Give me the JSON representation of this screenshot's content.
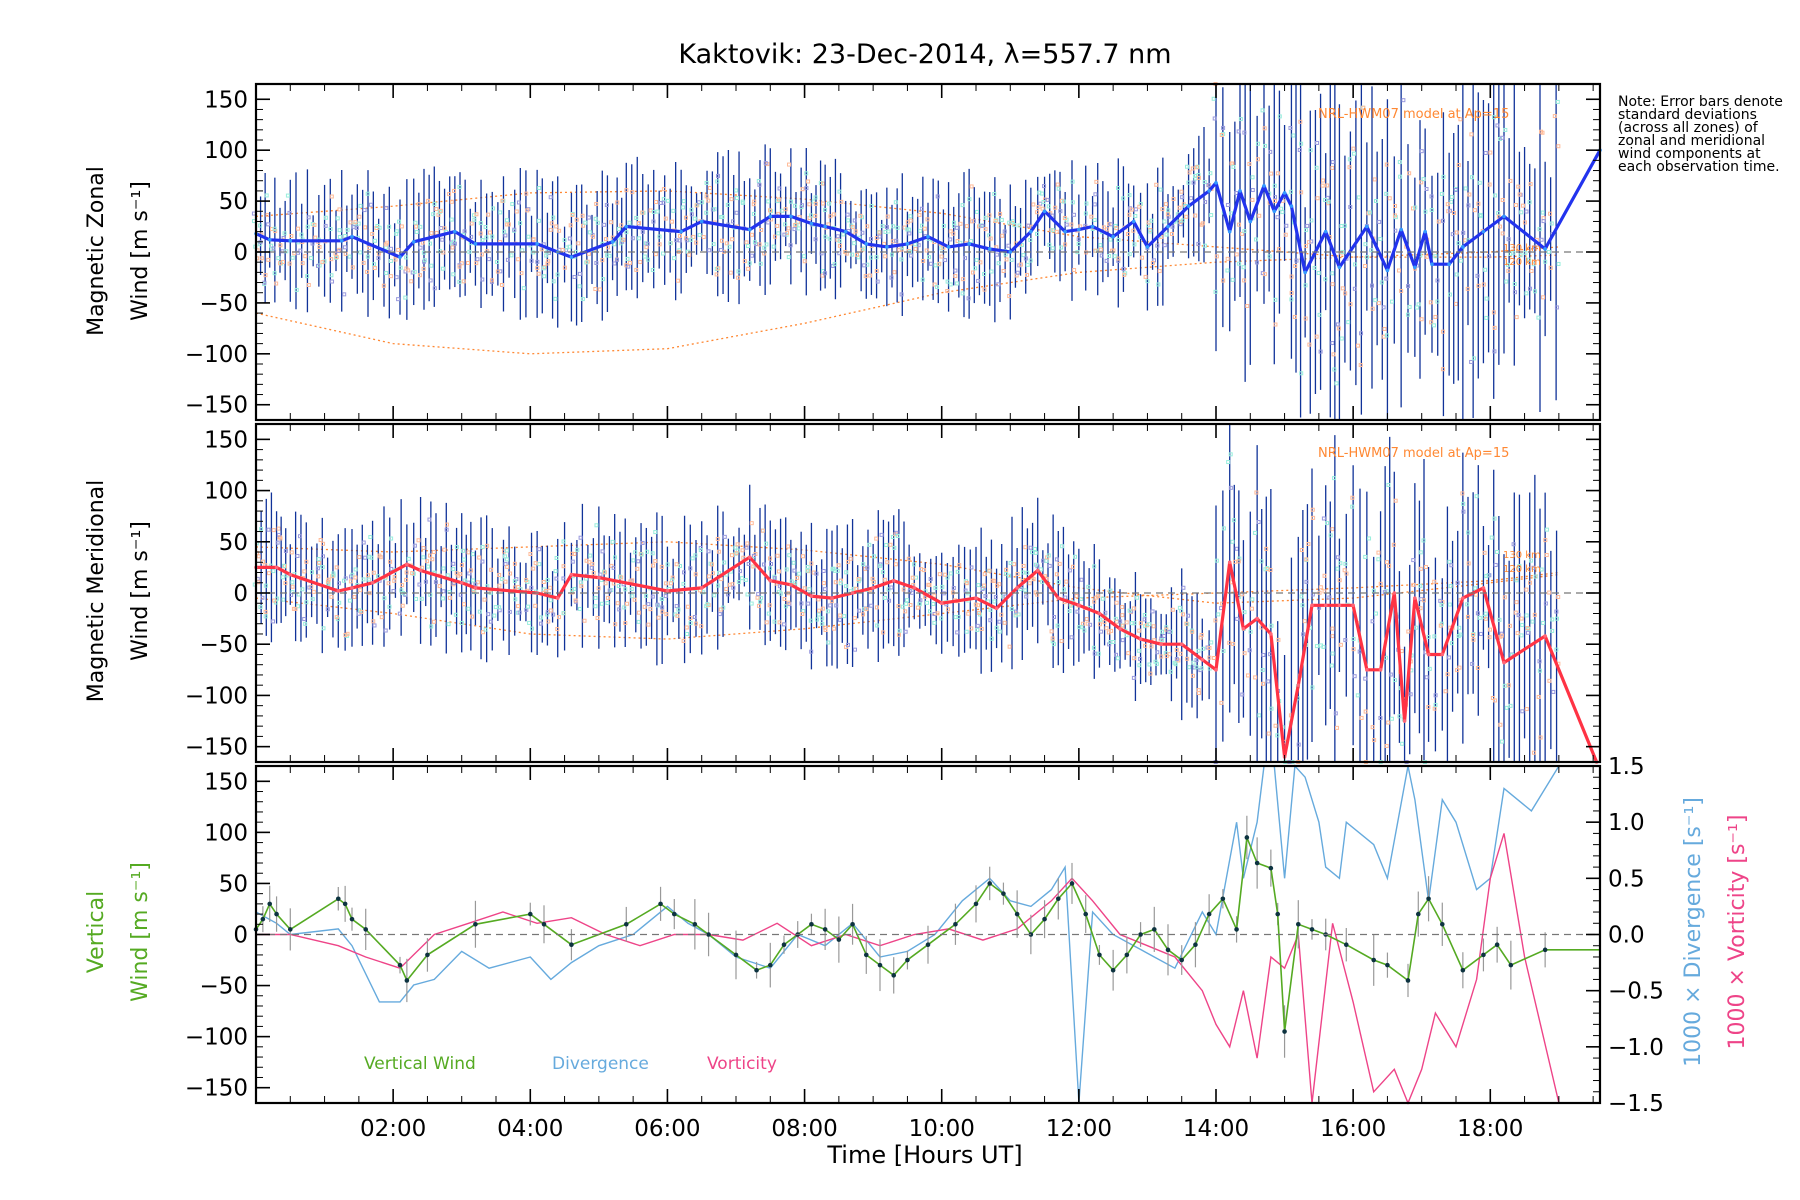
{
  "figure": {
    "title": "Kaktovik: 23-Dec-2014, λ=557.7 nm",
    "note": "Note: Error bars denote standard deviations (across all zones) of zonal and meridional wind components at each observation time.",
    "x_axis": {
      "label": "Time [Hours UT]",
      "range": [
        0.0,
        19.6
      ],
      "ticks": [
        2,
        4,
        6,
        8,
        10,
        12,
        14,
        16,
        18
      ],
      "tick_labels": [
        "02:00",
        "04:00",
        "06:00",
        "08:00",
        "10:00",
        "12:00",
        "14:00",
        "16:00",
        "18:00"
      ]
    },
    "colors": {
      "zonal": "#2233ee",
      "meridional": "#ff3344",
      "vertical": "#55aa22",
      "divergence": "#66aadd",
      "vorticity": "#ee4488",
      "model": "#ff8833",
      "error_bar": "#113399",
      "zone_point": "#9999dd",
      "zone_cyan": "#99eedd",
      "zone_orange": "#ffbb99"
    }
  },
  "chart_data": [
    {
      "type": "line",
      "id": "zonal",
      "ylabel_line1": "Magnetic Zonal",
      "ylabel_line2": "Wind [m s⁻¹]",
      "ylim": [
        -165,
        165
      ],
      "yticks": [
        150,
        100,
        50,
        0,
        -50,
        -100,
        -150
      ],
      "model_label": "NRL-HWM07 model at Ap=15",
      "model_height_labels": [
        "130 km",
        "120 km"
      ],
      "series": [
        {
          "name": "Zonal wind",
          "x": [
            0.0,
            0.2,
            0.5,
            1.25,
            1.4,
            2.1,
            2.3,
            2.9,
            3.2,
            4.1,
            4.4,
            4.6,
            5.2,
            5.4,
            6.2,
            6.5,
            7.2,
            7.5,
            7.8,
            8.1,
            8.3,
            8.6,
            8.9,
            9.2,
            9.5,
            9.8,
            10.1,
            10.4,
            10.7,
            11.0,
            11.3,
            11.5,
            11.8,
            12.0,
            12.2,
            12.5,
            12.8,
            13.0,
            13.3,
            13.6,
            13.9,
            14.0,
            14.2,
            14.35,
            14.5,
            14.7,
            14.85,
            15.0,
            15.1,
            15.3,
            15.6,
            15.8,
            16.2,
            16.5,
            16.7,
            16.9,
            17.05,
            17.15,
            17.4,
            17.6,
            17.9,
            18.2,
            18.8,
            19.6
          ],
          "values": [
            18,
            12,
            11,
            11,
            15,
            -5,
            10,
            20,
            8,
            8,
            0,
            -5,
            10,
            25,
            20,
            30,
            22,
            35,
            35,
            28,
            25,
            20,
            8,
            5,
            8,
            15,
            5,
            8,
            3,
            0,
            20,
            40,
            20,
            22,
            25,
            15,
            30,
            5,
            25,
            45,
            60,
            68,
            20,
            60,
            30,
            65,
            40,
            58,
            45,
            -20,
            20,
            -15,
            25,
            -18,
            22,
            -15,
            20,
            -12,
            -12,
            5,
            20,
            35,
            3,
            100
          ]
        },
        {
          "name": "NRL-HWM07 model 130 km",
          "x": [
            0.0,
            2.0,
            4.0,
            6.0,
            8.0,
            10.0,
            12.0,
            14.0,
            16.0,
            18.0,
            19.0
          ],
          "values": [
            35,
            45,
            58,
            60,
            52,
            38,
            15,
            5,
            -5,
            0,
            5
          ]
        },
        {
          "name": "NRL-HWM07 model 120 km",
          "x": [
            0.0,
            2.0,
            4.0,
            6.0,
            8.0,
            10.0,
            12.0,
            14.0,
            16.0,
            18.0,
            19.0
          ],
          "values": [
            -60,
            -90,
            -100,
            -95,
            -70,
            -40,
            -20,
            -10,
            -5,
            -5,
            -3
          ]
        }
      ]
    },
    {
      "type": "line",
      "id": "meridional",
      "ylabel_line1": "Magnetic Meridional",
      "ylabel_line2": "Wind [m s⁻¹]",
      "ylim": [
        -165,
        165
      ],
      "yticks": [
        150,
        100,
        50,
        0,
        -50,
        -100,
        -150
      ],
      "model_label": "NRL-HWM07 model at Ap=15",
      "model_height_labels": [
        "130 km",
        "120 km"
      ],
      "series": [
        {
          "name": "Meridional wind",
          "x": [
            0.0,
            0.3,
            0.5,
            1.2,
            1.4,
            1.7,
            2.2,
            2.4,
            3.0,
            3.2,
            4.1,
            4.4,
            4.6,
            5.0,
            6.0,
            6.5,
            7.2,
            7.5,
            7.8,
            8.1,
            8.4,
            8.7,
            9.0,
            9.3,
            9.6,
            10.0,
            10.5,
            10.8,
            11.1,
            11.4,
            11.7,
            12.0,
            12.3,
            12.6,
            12.9,
            13.2,
            13.5,
            13.8,
            14.0,
            14.2,
            14.4,
            14.6,
            14.8,
            15.0,
            15.2,
            15.4,
            15.6,
            15.8,
            16.0,
            16.2,
            16.4,
            16.6,
            16.75,
            16.9,
            17.1,
            17.3,
            17.6,
            17.9,
            18.2,
            18.8,
            19.55
          ],
          "values": [
            25,
            25,
            18,
            2,
            5,
            10,
            28,
            22,
            10,
            5,
            0,
            -5,
            18,
            15,
            2,
            5,
            35,
            12,
            8,
            -3,
            -5,
            0,
            5,
            12,
            5,
            -10,
            -5,
            -15,
            5,
            22,
            -5,
            -12,
            -20,
            -35,
            -45,
            -50,
            -50,
            -65,
            -75,
            30,
            -35,
            -25,
            -40,
            -160,
            -90,
            -12,
            -12,
            -12,
            -12,
            -75,
            -75,
            0,
            -125,
            -5,
            -60,
            -60,
            -5,
            5,
            -68,
            -42,
            -165
          ]
        },
        {
          "name": "NRL-HWM07 model 130 km",
          "x": [
            0.0,
            2.0,
            4.0,
            6.0,
            8.0,
            10.0,
            12.0,
            14.0,
            16.0,
            18.0,
            19.0
          ],
          "values": [
            45,
            40,
            45,
            50,
            42,
            28,
            5,
            -10,
            -5,
            10,
            18
          ]
        },
        {
          "name": "NRL-HWM07 model 120 km",
          "x": [
            0.0,
            2.0,
            4.0,
            6.0,
            8.0,
            10.0,
            12.0,
            14.0,
            16.0,
            18.0,
            19.0
          ],
          "values": [
            -5,
            -20,
            -40,
            -45,
            -35,
            -20,
            -5,
            0,
            5,
            12,
            20
          ]
        }
      ]
    },
    {
      "type": "line",
      "id": "vertical",
      "ylabel_line1": "Vertical",
      "ylabel_line2": "Wind [m s⁻¹]",
      "ylim": [
        -165,
        165
      ],
      "yticks": [
        150,
        100,
        50,
        0,
        -50,
        -100,
        -150
      ],
      "y2label_div": "1000 × Divergence [s⁻¹]",
      "y2label_vort": "1000 × Vorticity [s⁻¹]",
      "y2lim": [
        -1.5,
        1.5
      ],
      "y2ticks": [
        1.5,
        1.0,
        0.5,
        0.0,
        -0.5,
        -1.0,
        -1.5
      ],
      "legend": [
        "Vertical Wind",
        "Divergence",
        "Vorticity"
      ],
      "series": [
        {
          "name": "Vertical Wind",
          "x": [
            0.0,
            0.1,
            0.2,
            0.3,
            0.5,
            1.2,
            1.3,
            1.4,
            1.6,
            2.1,
            2.2,
            2.5,
            3.2,
            4.0,
            4.2,
            4.6,
            5.4,
            5.9,
            6.1,
            6.4,
            6.6,
            7.0,
            7.3,
            7.5,
            7.7,
            7.9,
            8.1,
            8.3,
            8.5,
            8.7,
            8.9,
            9.1,
            9.3,
            9.5,
            9.8,
            10.2,
            10.5,
            10.7,
            10.9,
            11.1,
            11.3,
            11.5,
            11.7,
            11.9,
            12.1,
            12.3,
            12.5,
            12.7,
            12.9,
            13.1,
            13.3,
            13.5,
            13.7,
            13.9,
            14.1,
            14.3,
            14.45,
            14.6,
            14.8,
            14.9,
            15.0,
            15.2,
            15.4,
            15.6,
            15.9,
            16.3,
            16.5,
            16.8,
            16.95,
            17.1,
            17.3,
            17.6,
            17.9,
            18.1,
            18.3,
            18.8,
            19.6
          ],
          "values": [
            5,
            15,
            30,
            20,
            5,
            35,
            30,
            15,
            5,
            -30,
            -45,
            -20,
            10,
            20,
            10,
            -10,
            10,
            30,
            20,
            10,
            0,
            -20,
            -35,
            -30,
            -10,
            0,
            10,
            5,
            -5,
            10,
            -20,
            -30,
            -40,
            -25,
            -10,
            10,
            30,
            50,
            40,
            20,
            0,
            15,
            35,
            50,
            20,
            -20,
            -35,
            -20,
            0,
            5,
            -15,
            -25,
            -10,
            20,
            35,
            5,
            95,
            70,
            65,
            20,
            -95,
            10,
            5,
            0,
            -10,
            -25,
            -30,
            -45,
            20,
            35,
            10,
            -35,
            -20,
            -10,
            -30,
            -15,
            -15
          ]
        },
        {
          "name": "Divergence",
          "x": [
            0.0,
            0.3,
            0.5,
            1.2,
            1.4,
            1.8,
            2.1,
            2.3,
            2.6,
            3.0,
            3.4,
            4.0,
            4.3,
            4.6,
            5.0,
            5.5,
            6.0,
            6.3,
            6.6,
            7.0,
            7.5,
            7.9,
            8.3,
            8.7,
            9.1,
            9.5,
            9.9,
            10.3,
            10.7,
            11.0,
            11.3,
            11.6,
            11.8,
            12.0,
            12.2,
            12.5,
            12.8,
            13.1,
            13.4,
            13.8,
            14.0,
            14.3,
            14.4,
            14.6,
            14.7,
            14.85,
            15.0,
            15.15,
            15.3,
            15.5,
            15.6,
            15.8,
            15.9,
            16.3,
            16.5,
            16.8,
            16.9,
            17.1,
            17.3,
            17.5,
            17.8,
            18.0,
            18.2,
            18.6,
            19.0
          ],
          "values": [
            0.2,
            0.1,
            0.0,
            0.05,
            -0.1,
            -0.6,
            -0.6,
            -0.45,
            -0.4,
            -0.15,
            -0.3,
            -0.2,
            -0.4,
            -0.25,
            -0.1,
            0.0,
            0.25,
            0.1,
            0.0,
            -0.2,
            -0.3,
            0.0,
            -0.1,
            0.1,
            -0.2,
            -0.15,
            0.0,
            0.3,
            0.5,
            0.3,
            0.25,
            0.4,
            0.6,
            -1.5,
            0.2,
            0.0,
            -0.1,
            -0.2,
            -0.3,
            0.2,
            0.0,
            1.0,
            0.5,
            1.0,
            1.5,
            1.5,
            0.5,
            1.5,
            1.4,
            1.0,
            0.6,
            0.5,
            1.0,
            0.8,
            0.5,
            1.5,
            1.2,
            0.3,
            1.2,
            1.0,
            0.4,
            0.5,
            1.3,
            1.1,
            1.5
          ]
        },
        {
          "name": "Vorticity",
          "x": [
            0.0,
            0.5,
            1.2,
            1.6,
            2.1,
            2.6,
            3.1,
            3.6,
            4.1,
            4.6,
            5.1,
            5.6,
            6.1,
            6.6,
            7.1,
            7.6,
            8.1,
            8.6,
            9.1,
            9.6,
            10.1,
            10.6,
            11.1,
            11.6,
            11.9,
            12.2,
            12.6,
            13.0,
            13.4,
            13.8,
            14.0,
            14.2,
            14.4,
            14.6,
            14.8,
            15.0,
            15.2,
            15.4,
            15.7,
            16.0,
            16.3,
            16.6,
            16.8,
            17.0,
            17.2,
            17.5,
            17.8,
            18.0,
            18.2,
            18.5,
            19.0
          ],
          "values": [
            0.0,
            0.0,
            -0.1,
            -0.2,
            -0.3,
            0.0,
            0.1,
            0.2,
            0.1,
            0.15,
            0.0,
            -0.1,
            0.0,
            0.0,
            -0.05,
            0.1,
            -0.1,
            0.0,
            -0.1,
            0.0,
            0.05,
            -0.05,
            0.05,
            0.3,
            0.5,
            0.3,
            0.0,
            -0.1,
            -0.2,
            -0.5,
            -0.8,
            -1.0,
            -0.5,
            -1.1,
            -0.2,
            -0.3,
            0.0,
            -1.5,
            0.1,
            -0.6,
            -1.4,
            -1.2,
            -1.5,
            -1.2,
            -0.7,
            -1.0,
            -0.4,
            0.5,
            0.9,
            -0.2,
            -1.5
          ]
        }
      ]
    }
  ]
}
